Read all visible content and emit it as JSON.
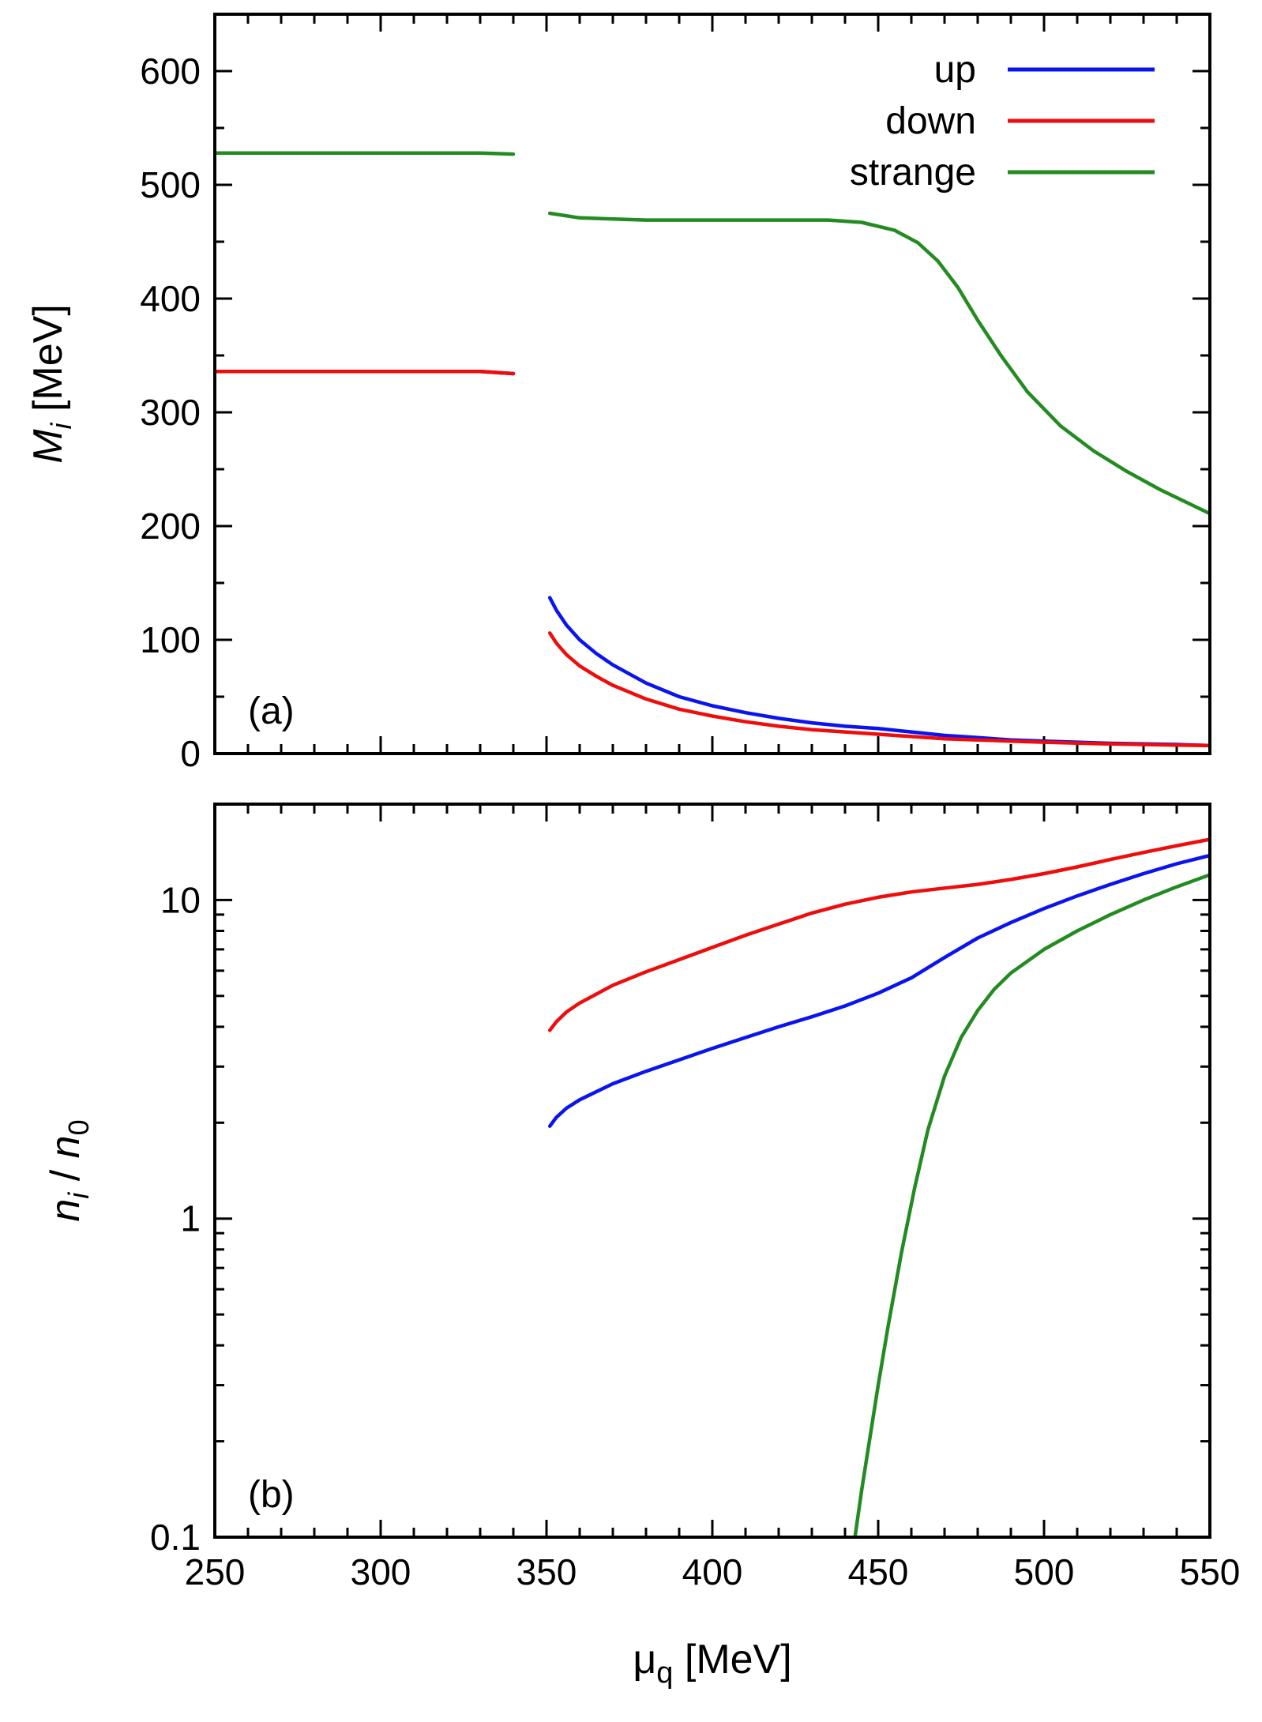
{
  "colors": {
    "up": "#0a14ee",
    "down": "#ee0d0d",
    "strange": "#238b22",
    "axis": "#000000"
  },
  "chart_data": [
    {
      "type": "line",
      "panel_label": "(a)",
      "ylabel": "M_i [MeV]",
      "ylabel_main": "M",
      "ylabel_sub": "i",
      "ylabel_rest": " [MeV]",
      "xlim": [
        250,
        550
      ],
      "ylim": [
        0,
        650
      ],
      "yscale": "linear",
      "grid": false,
      "legend_position": "top-right",
      "xticks": [
        250,
        300,
        350,
        400,
        450,
        500,
        550
      ],
      "yticks": [
        0,
        100,
        200,
        300,
        400,
        500,
        600
      ],
      "ytick_labels": [
        "0",
        "100",
        "200",
        "300",
        "400",
        "500",
        "600"
      ],
      "series": [
        {
          "name": "up",
          "color": "up",
          "segments": [
            [
              [
                250,
                336
              ],
              [
                300,
                336
              ],
              [
                330,
                336
              ],
              [
                340,
                334
              ]
            ],
            [
              [
                351,
                137
              ],
              [
                353,
                126
              ],
              [
                356,
                113
              ],
              [
                360,
                100
              ],
              [
                365,
                88
              ],
              [
                370,
                78
              ],
              [
                380,
                62
              ],
              [
                390,
                50
              ],
              [
                400,
                42
              ],
              [
                410,
                36
              ],
              [
                420,
                31
              ],
              [
                430,
                27
              ],
              [
                440,
                24
              ],
              [
                450,
                22
              ],
              [
                460,
                19
              ],
              [
                470,
                16
              ],
              [
                480,
                14
              ],
              [
                490,
                12
              ],
              [
                500,
                11
              ],
              [
                520,
                9
              ],
              [
                540,
                8
              ],
              [
                550,
                7
              ]
            ]
          ]
        },
        {
          "name": "down",
          "color": "down",
          "segments": [
            [
              [
                250,
                336
              ],
              [
                300,
                336
              ],
              [
                330,
                336
              ],
              [
                340,
                334
              ]
            ],
            [
              [
                351,
                106
              ],
              [
                353,
                97
              ],
              [
                356,
                87
              ],
              [
                360,
                77
              ],
              [
                365,
                68
              ],
              [
                370,
                60
              ],
              [
                380,
                48
              ],
              [
                390,
                39
              ],
              [
                400,
                33
              ],
              [
                410,
                28
              ],
              [
                420,
                24
              ],
              [
                430,
                21
              ],
              [
                440,
                19
              ],
              [
                450,
                17
              ],
              [
                460,
                15
              ],
              [
                470,
                13
              ],
              [
                480,
                12
              ],
              [
                490,
                11
              ],
              [
                500,
                10
              ],
              [
                520,
                8.5
              ],
              [
                540,
                7.5
              ],
              [
                550,
                7
              ]
            ]
          ]
        },
        {
          "name": "strange",
          "color": "strange",
          "segments": [
            [
              [
                250,
                528
              ],
              [
                300,
                528
              ],
              [
                330,
                528
              ],
              [
                340,
                527
              ]
            ],
            [
              [
                351,
                475
              ],
              [
                360,
                471
              ],
              [
                380,
                469
              ],
              [
                400,
                469
              ],
              [
                420,
                469
              ],
              [
                435,
                469
              ],
              [
                445,
                467
              ],
              [
                455,
                460
              ],
              [
                462,
                449
              ],
              [
                468,
                433
              ],
              [
                474,
                410
              ],
              [
                480,
                381
              ],
              [
                487,
                350
              ],
              [
                495,
                318
              ],
              [
                505,
                288
              ],
              [
                515,
                266
              ],
              [
                525,
                248
              ],
              [
                535,
                232
              ],
              [
                545,
                218
              ],
              [
                550,
                211
              ]
            ]
          ]
        }
      ]
    },
    {
      "type": "line",
      "panel_label": "(b)",
      "ylabel": "n_i / n_0",
      "ylabel_n1": "n",
      "ylabel_sub1": "i",
      "ylabel_slash": " / ",
      "ylabel_n2": "n",
      "ylabel_sub2": "0",
      "xlabel": "μq [MeV]",
      "xlabel_mu": "μ",
      "xlabel_sub": "q",
      "xlabel_rest": " [MeV]",
      "xlim": [
        250,
        550
      ],
      "ylim": [
        0.1,
        20
      ],
      "yscale": "log",
      "grid": false,
      "xticks": [
        250,
        300,
        350,
        400,
        450,
        500,
        550
      ],
      "xtick_labels": [
        "250",
        "300",
        "350",
        "400",
        "450",
        "500",
        "550"
      ],
      "yticks": [
        0.1,
        1,
        10
      ],
      "ytick_labels": [
        "0.1",
        "1",
        "10"
      ],
      "series": [
        {
          "name": "up",
          "color": "up",
          "segments": [
            [
              [
                351,
                1.95
              ],
              [
                353,
                2.08
              ],
              [
                356,
                2.22
              ],
              [
                360,
                2.36
              ],
              [
                370,
                2.65
              ],
              [
                380,
                2.9
              ],
              [
                390,
                3.15
              ],
              [
                400,
                3.42
              ],
              [
                410,
                3.7
              ],
              [
                420,
                4.0
              ],
              [
                430,
                4.3
              ],
              [
                440,
                4.65
              ],
              [
                450,
                5.1
              ],
              [
                460,
                5.7
              ],
              [
                470,
                6.6
              ],
              [
                480,
                7.6
              ],
              [
                490,
                8.5
              ],
              [
                500,
                9.4
              ],
              [
                510,
                10.3
              ],
              [
                520,
                11.2
              ],
              [
                530,
                12.1
              ],
              [
                540,
                13.0
              ],
              [
                550,
                13.8
              ]
            ]
          ]
        },
        {
          "name": "down",
          "color": "down",
          "segments": [
            [
              [
                351,
                3.9
              ],
              [
                353,
                4.15
              ],
              [
                356,
                4.45
              ],
              [
                360,
                4.75
              ],
              [
                370,
                5.4
              ],
              [
                380,
                5.95
              ],
              [
                390,
                6.5
              ],
              [
                400,
                7.1
              ],
              [
                410,
                7.75
              ],
              [
                420,
                8.4
              ],
              [
                430,
                9.1
              ],
              [
                440,
                9.7
              ],
              [
                450,
                10.2
              ],
              [
                460,
                10.6
              ],
              [
                470,
                10.9
              ],
              [
                480,
                11.2
              ],
              [
                490,
                11.6
              ],
              [
                500,
                12.1
              ],
              [
                510,
                12.7
              ],
              [
                520,
                13.4
              ],
              [
                530,
                14.1
              ],
              [
                540,
                14.8
              ],
              [
                550,
                15.5
              ]
            ]
          ]
        },
        {
          "name": "strange",
          "color": "strange",
          "segments": [
            [
              [
                443,
                0.1
              ],
              [
                445,
                0.14
              ],
              [
                447,
                0.19
              ],
              [
                450,
                0.3
              ],
              [
                453,
                0.46
              ],
              [
                457,
                0.78
              ],
              [
                461,
                1.25
              ],
              [
                465,
                1.9
              ],
              [
                470,
                2.8
              ],
              [
                475,
                3.7
              ],
              [
                480,
                4.5
              ],
              [
                485,
                5.25
              ],
              [
                490,
                5.9
              ],
              [
                500,
                7.0
              ],
              [
                510,
                8.0
              ],
              [
                520,
                9.0
              ],
              [
                530,
                10.0
              ],
              [
                540,
                11.0
              ],
              [
                550,
                12.0
              ]
            ]
          ]
        }
      ]
    }
  ]
}
